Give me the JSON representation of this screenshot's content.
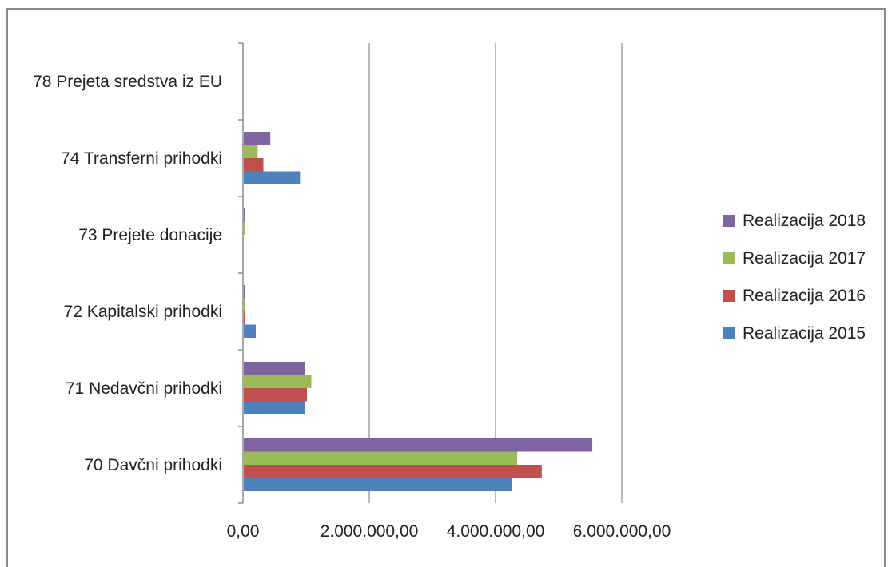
{
  "chart_data": {
    "type": "bar",
    "orientation": "horizontal",
    "categories": [
      "70 Davčni prihodki",
      "71 Nedavčni prihodki",
      "72 Kapitalski prihodki",
      "73 Prejete donacije",
      "74 Transferni prihodki",
      "78 Prejeta sredstva iz EU"
    ],
    "series": [
      {
        "name": "Realizacija 2015",
        "color": "#4F81BD",
        "values": [
          4250000,
          970000,
          190000,
          0,
          890000,
          0
        ]
      },
      {
        "name": "Realizacija 2016",
        "color": "#C0504D",
        "values": [
          4720000,
          1000000,
          15000,
          0,
          310000,
          0
        ]
      },
      {
        "name": "Realizacija 2017",
        "color": "#9BBB59",
        "values": [
          4330000,
          1070000,
          15000,
          15000,
          220000,
          0
        ]
      },
      {
        "name": "Realizacija 2018",
        "color": "#8064A2",
        "values": [
          5520000,
          970000,
          25000,
          25000,
          420000,
          0
        ]
      }
    ],
    "xlim": [
      0,
      6000000
    ],
    "xticks": [
      0,
      2000000,
      4000000,
      6000000
    ],
    "xtick_labels": [
      "0,00",
      "2.000.000,00",
      "4.000.000,00",
      "6.000.000,00"
    ],
    "grid": "vertical",
    "legend_position": "right",
    "title": "",
    "xlabel": "",
    "ylabel": ""
  }
}
